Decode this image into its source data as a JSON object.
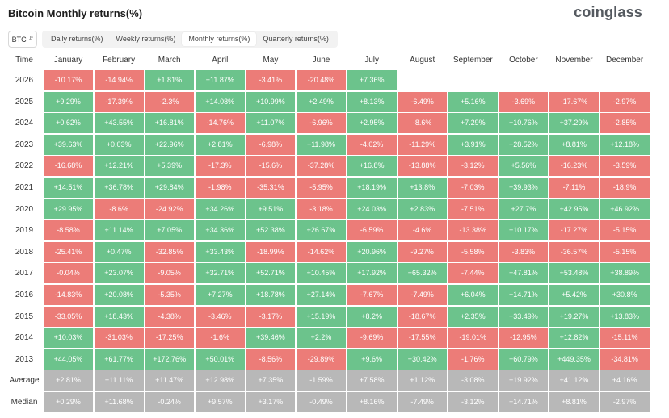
{
  "page": {
    "title": "Bitcoin Monthly returns(%)",
    "logo": "coinglass"
  },
  "toolbar": {
    "coin": "BTC",
    "tabs": [
      {
        "label": "Daily returns(%)",
        "active": false
      },
      {
        "label": "Weekly returns(%)",
        "active": false
      },
      {
        "label": "Monthly returns(%)",
        "active": true
      },
      {
        "label": "Quarterly returns(%)",
        "active": false
      }
    ]
  },
  "colors": {
    "positive": "#6cc38c",
    "negative": "#ec7c78",
    "summary": "#b8b8b8"
  },
  "table": {
    "time_label": "Time",
    "months": [
      "January",
      "February",
      "March",
      "April",
      "May",
      "June",
      "July",
      "August",
      "September",
      "October",
      "November",
      "December"
    ],
    "rows": [
      {
        "year": "2026",
        "values": [
          "-10.17%",
          "-14.94%",
          "+1.81%",
          "+11.87%",
          "-3.41%",
          "-20.48%",
          "+7.36%"
        ]
      },
      {
        "year": "2025",
        "values": [
          "+9.29%",
          "-17.39%",
          "-2.3%",
          "+14.08%",
          "+10.99%",
          "+2.49%",
          "+8.13%",
          "-6.49%",
          "+5.16%",
          "-3.69%",
          "-17.67%",
          "-2.97%"
        ]
      },
      {
        "year": "2024",
        "values": [
          "+0.62%",
          "+43.55%",
          "+16.81%",
          "-14.76%",
          "+11.07%",
          "-6.96%",
          "+2.95%",
          "-8.6%",
          "+7.29%",
          "+10.76%",
          "+37.29%",
          "-2.85%"
        ]
      },
      {
        "year": "2023",
        "values": [
          "+39.63%",
          "+0.03%",
          "+22.96%",
          "+2.81%",
          "-6.98%",
          "+11.98%",
          "-4.02%",
          "-11.29%",
          "+3.91%",
          "+28.52%",
          "+8.81%",
          "+12.18%"
        ]
      },
      {
        "year": "2022",
        "values": [
          "-16.68%",
          "+12.21%",
          "+5.39%",
          "-17.3%",
          "-15.6%",
          "-37.28%",
          "+16.8%",
          "-13.88%",
          "-3.12%",
          "+5.56%",
          "-16.23%",
          "-3.59%"
        ]
      },
      {
        "year": "2021",
        "values": [
          "+14.51%",
          "+36.78%",
          "+29.84%",
          "-1.98%",
          "-35.31%",
          "-5.95%",
          "+18.19%",
          "+13.8%",
          "-7.03%",
          "+39.93%",
          "-7.11%",
          "-18.9%"
        ]
      },
      {
        "year": "2020",
        "values": [
          "+29.95%",
          "-8.6%",
          "-24.92%",
          "+34.26%",
          "+9.51%",
          "-3.18%",
          "+24.03%",
          "+2.83%",
          "-7.51%",
          "+27.7%",
          "+42.95%",
          "+46.92%"
        ]
      },
      {
        "year": "2019",
        "values": [
          "-8.58%",
          "+11.14%",
          "+7.05%",
          "+34.36%",
          "+52.38%",
          "+26.67%",
          "-6.59%",
          "-4.6%",
          "-13.38%",
          "+10.17%",
          "-17.27%",
          "-5.15%"
        ]
      },
      {
        "year": "2018",
        "values": [
          "-25.41%",
          "+0.47%",
          "-32.85%",
          "+33.43%",
          "-18.99%",
          "-14.62%",
          "+20.96%",
          "-9.27%",
          "-5.58%",
          "-3.83%",
          "-36.57%",
          "-5.15%"
        ]
      },
      {
        "year": "2017",
        "values": [
          "-0.04%",
          "+23.07%",
          "-9.05%",
          "+32.71%",
          "+52.71%",
          "+10.45%",
          "+17.92%",
          "+65.32%",
          "-7.44%",
          "+47.81%",
          "+53.48%",
          "+38.89%"
        ]
      },
      {
        "year": "2016",
        "values": [
          "-14.83%",
          "+20.08%",
          "-5.35%",
          "+7.27%",
          "+18.78%",
          "+27.14%",
          "-7.67%",
          "-7.49%",
          "+6.04%",
          "+14.71%",
          "+5.42%",
          "+30.8%"
        ]
      },
      {
        "year": "2015",
        "values": [
          "-33.05%",
          "+18.43%",
          "-4.38%",
          "-3.46%",
          "-3.17%",
          "+15.19%",
          "+8.2%",
          "-18.67%",
          "+2.35%",
          "+33.49%",
          "+19.27%",
          "+13.83%"
        ]
      },
      {
        "year": "2014",
        "values": [
          "+10.03%",
          "-31.03%",
          "-17.25%",
          "-1.6%",
          "+39.46%",
          "+2.2%",
          "-9.69%",
          "-17.55%",
          "-19.01%",
          "-12.95%",
          "+12.82%",
          "-15.11%"
        ]
      },
      {
        "year": "2013",
        "values": [
          "+44.05%",
          "+61.77%",
          "+172.76%",
          "+50.01%",
          "-8.56%",
          "-29.89%",
          "+9.6%",
          "+30.42%",
          "-1.76%",
          "+60.79%",
          "+449.35%",
          "-34.81%"
        ]
      }
    ],
    "summary": [
      {
        "label": "Average",
        "values": [
          "+2.81%",
          "+11.11%",
          "+11.47%",
          "+12.98%",
          "+7.35%",
          "-1.59%",
          "+7.58%",
          "+1.12%",
          "-3.08%",
          "+19.92%",
          "+41.12%",
          "+4.16%"
        ]
      },
      {
        "label": "Median",
        "values": [
          "+0.29%",
          "+11.68%",
          "-0.24%",
          "+9.57%",
          "+3.17%",
          "-0.49%",
          "+8.16%",
          "-7.49%",
          "-3.12%",
          "+14.71%",
          "+8.81%",
          "-2.97%"
        ]
      }
    ]
  }
}
